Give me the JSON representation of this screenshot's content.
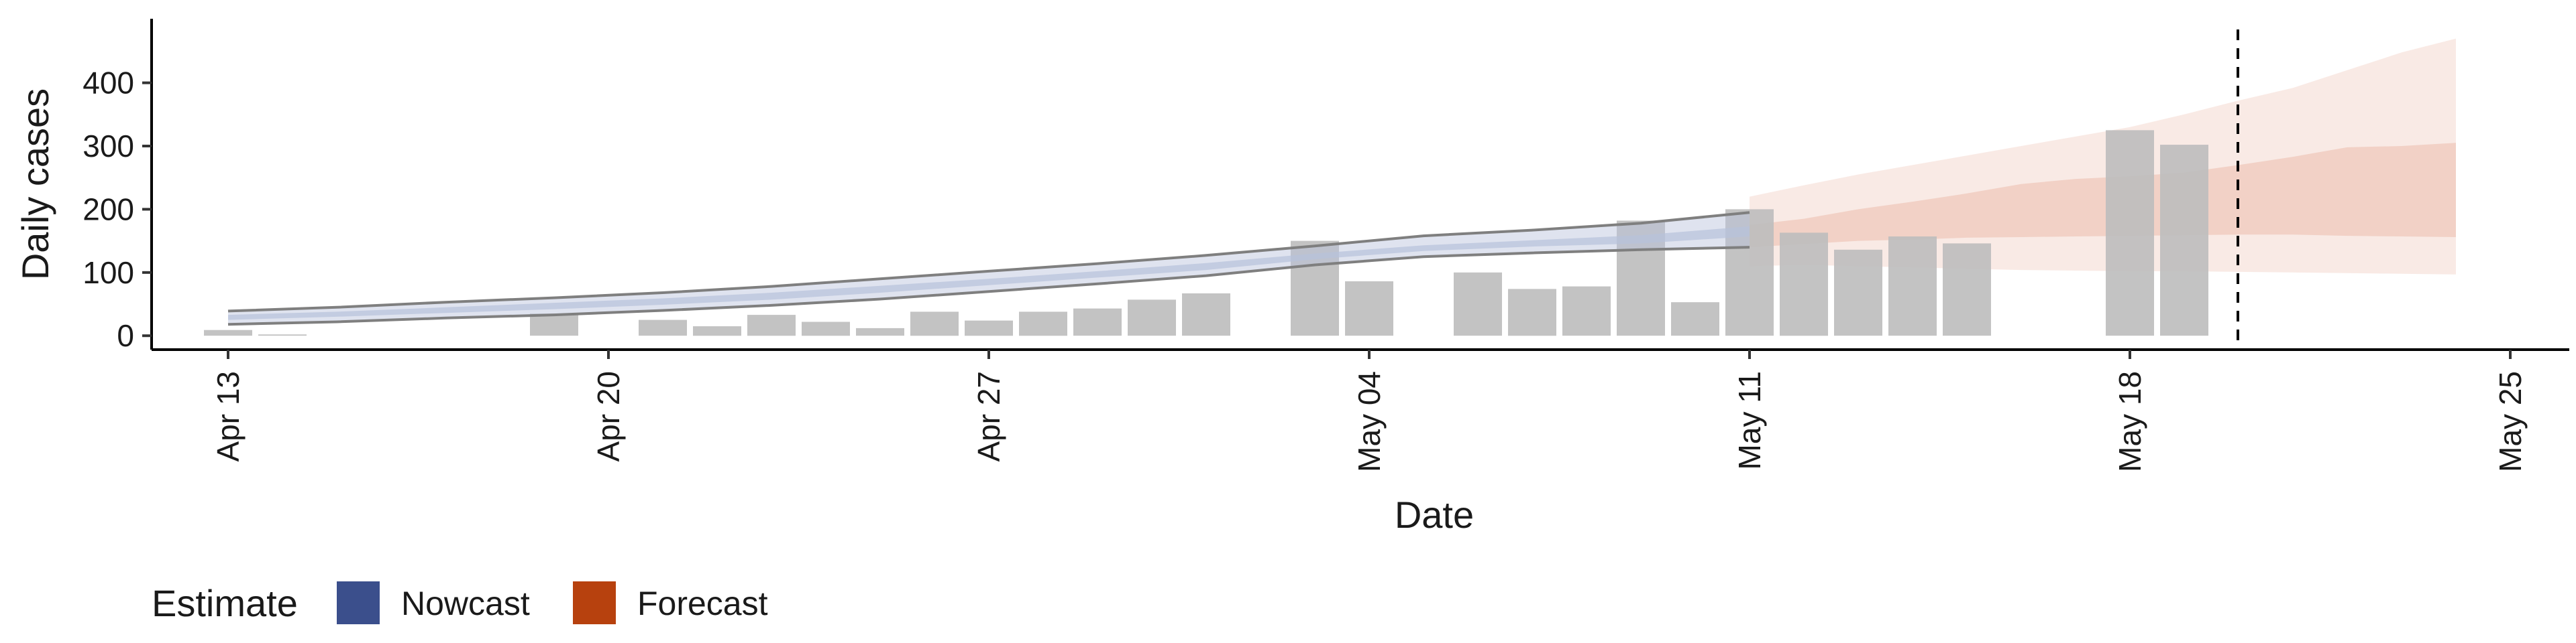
{
  "chart_data": {
    "type": "bar",
    "title": "",
    "xlabel": "Date",
    "ylabel": "Daily cases",
    "x_start": "2020-04-12",
    "x_ticks": [
      "Apr 13",
      "Apr 20",
      "Apr 27",
      "May 04",
      "May 11",
      "May 18",
      "May 25"
    ],
    "x_tick_dates": [
      "2020-04-13",
      "2020-04-20",
      "2020-04-27",
      "2020-05-04",
      "2020-05-11",
      "2020-05-18",
      "2020-05-25"
    ],
    "y_ticks": [
      "0",
      "100",
      "200",
      "300",
      "400"
    ],
    "ylim": [
      -22,
      492
    ],
    "xlim": [
      "2020-04-12",
      "2020-05-25"
    ],
    "grid": false,
    "bar_color": "#bdbdbd",
    "observed_cases": [
      {
        "date": "2020-04-13",
        "value": 9
      },
      {
        "date": "2020-04-14",
        "value": 2
      },
      {
        "date": "2020-04-19",
        "value": 35
      },
      {
        "date": "2020-04-20",
        "value": 0
      },
      {
        "date": "2020-04-21",
        "value": 25
      },
      {
        "date": "2020-04-22",
        "value": 15
      },
      {
        "date": "2020-04-23",
        "value": 33
      },
      {
        "date": "2020-04-24",
        "value": 22
      },
      {
        "date": "2020-04-25",
        "value": 12
      },
      {
        "date": "2020-04-26",
        "value": 38
      },
      {
        "date": "2020-04-27",
        "value": 24
      },
      {
        "date": "2020-04-28",
        "value": 38
      },
      {
        "date": "2020-04-29",
        "value": 43
      },
      {
        "date": "2020-04-30",
        "value": 57
      },
      {
        "date": "2020-05-01",
        "value": 67
      },
      {
        "date": "2020-05-03",
        "value": 150
      },
      {
        "date": "2020-05-04",
        "value": 86
      },
      {
        "date": "2020-05-06",
        "value": 100
      },
      {
        "date": "2020-05-07",
        "value": 74
      },
      {
        "date": "2020-05-08",
        "value": 78
      },
      {
        "date": "2020-05-09",
        "value": 182
      },
      {
        "date": "2020-05-10",
        "value": 53
      },
      {
        "date": "2020-05-11",
        "value": 200
      },
      {
        "date": "2020-05-12",
        "value": 163
      },
      {
        "date": "2020-05-13",
        "value": 136
      },
      {
        "date": "2020-05-14",
        "value": 157
      },
      {
        "date": "2020-05-15",
        "value": 146
      },
      {
        "date": "2020-05-18",
        "value": 325
      },
      {
        "date": "2020-05-19",
        "value": 302
      }
    ],
    "nowcast": {
      "color": "#b7c2db",
      "outline_color": "#7f7f7f",
      "dates": [
        "2020-04-13",
        "2020-04-15",
        "2020-04-17",
        "2020-04-19",
        "2020-04-21",
        "2020-04-23",
        "2020-04-25",
        "2020-04-27",
        "2020-04-29",
        "2020-05-01",
        "2020-05-03",
        "2020-05-05",
        "2020-05-07",
        "2020-05-09",
        "2020-05-11"
      ],
      "upper_90": [
        39,
        45,
        53,
        60,
        68,
        78,
        90,
        102,
        114,
        127,
        142,
        158,
        167,
        178,
        195
      ],
      "lower_90": [
        18,
        22,
        28,
        33,
        40,
        48,
        58,
        70,
        82,
        95,
        112,
        125,
        131,
        136,
        140
      ],
      "upper_50": [
        33,
        38,
        45,
        52,
        59,
        68,
        79,
        90,
        102,
        115,
        130,
        143,
        151,
        159,
        173
      ],
      "lower_50": [
        25,
        30,
        36,
        42,
        49,
        57,
        68,
        80,
        92,
        104,
        121,
        134,
        141,
        146,
        157
      ]
    },
    "forecast": {
      "color": "#e8b4a0",
      "dates": [
        "2020-05-11",
        "2020-05-12",
        "2020-05-13",
        "2020-05-14",
        "2020-05-15",
        "2020-05-16",
        "2020-05-17",
        "2020-05-18",
        "2020-05-19",
        "2020-05-20",
        "2020-05-21",
        "2020-05-22",
        "2020-05-23",
        "2020-05-24"
      ],
      "upper_90": [
        220,
        238,
        255,
        270,
        285,
        300,
        315,
        330,
        350,
        372,
        392,
        420,
        448,
        470
      ],
      "lower_90": [
        110,
        112,
        110,
        108,
        106,
        104,
        103,
        102,
        102,
        101,
        100,
        99,
        98,
        97
      ],
      "upper_50": [
        175,
        185,
        200,
        212,
        225,
        240,
        248,
        252,
        258,
        270,
        283,
        298,
        300,
        305
      ],
      "lower_50": [
        140,
        145,
        150,
        152,
        155,
        156,
        157,
        158,
        159,
        160,
        160,
        158,
        157,
        156
      ]
    },
    "reference_line_date": "2020-05-19",
    "legend": {
      "title": "Estimate",
      "position": "bottom-left",
      "items": [
        {
          "label": "Nowcast",
          "color": "#3b4f8c"
        },
        {
          "label": "Forecast",
          "color": "#b7410e"
        }
      ]
    }
  }
}
